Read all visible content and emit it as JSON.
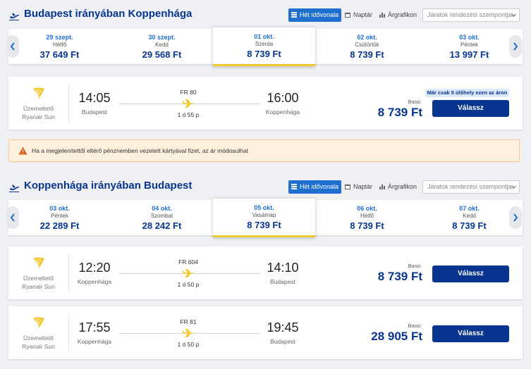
{
  "colors": {
    "brand": "#073590",
    "accent": "#1f6fd1",
    "highlight": "#f1c933",
    "warning_bg": "#fdf0dd"
  },
  "outbound": {
    "title": "Budapest irányában Koppenhága",
    "views": {
      "week": "Hét idővonala",
      "calendar": "Naptár",
      "chart": "Árgrafikon"
    },
    "sort_placeholder": "Járatok rendezési szempontja:",
    "dates": [
      {
        "date": "29 szept.",
        "day": "Hétfő",
        "price": "37 649 Ft"
      },
      {
        "date": "30 szept.",
        "day": "Kedd",
        "price": "29 568 Ft"
      },
      {
        "date": "01 okt.",
        "day": "Szerda",
        "price": "8 739 Ft"
      },
      {
        "date": "02 okt.",
        "day": "Csütörtök",
        "price": "8 739 Ft"
      },
      {
        "date": "03 okt.",
        "day": "Péntek",
        "price": "13 997 Ft"
      }
    ],
    "flights": [
      {
        "operator_label": "Üzemeltető",
        "operator": "Ryanair Sun",
        "dep_time": "14:05",
        "dep_city": "Budapest",
        "arr_time": "16:00",
        "arr_city": "Koppenhága",
        "flight_no": "FR 80",
        "duration": "1 ó 55 p",
        "fare": "Basic",
        "price": "8 739 Ft",
        "seats": "Már csak 5 ülőhely ezen az áron",
        "button": "Válassz"
      }
    ]
  },
  "warning": "Ha a megjelenítettől eltérő pénznemben vezetett kártyával fizet, az ár módosulhat",
  "inbound": {
    "title": "Koppenhága irányában Budapest",
    "views": {
      "week": "Hét idővonala",
      "calendar": "Naptár",
      "chart": "Árgrafikon"
    },
    "sort_placeholder": "Járatok rendezési szempontja:",
    "dates": [
      {
        "date": "03 okt.",
        "day": "Péntek",
        "price": "22 289 Ft"
      },
      {
        "date": "04 okt.",
        "day": "Szombat",
        "price": "28 242 Ft"
      },
      {
        "date": "05 okt.",
        "day": "Vasárnap",
        "price": "8 739 Ft"
      },
      {
        "date": "06 okt.",
        "day": "Hétfő",
        "price": "8 739 Ft"
      },
      {
        "date": "07 okt.",
        "day": "Kedd",
        "price": "8 739 Ft"
      }
    ],
    "flights": [
      {
        "operator_label": "Üzemeltető",
        "operator": "Ryanair Sun",
        "dep_time": "12:20",
        "dep_city": "Koppenhága",
        "arr_time": "14:10",
        "arr_city": "Budapest",
        "flight_no": "FR 604",
        "duration": "1 ó 50 p",
        "fare": "Basic",
        "price": "8 739 Ft",
        "button": "Válassz"
      },
      {
        "operator_label": "Üzemeltető",
        "operator": "Ryanair Sun",
        "dep_time": "17:55",
        "dep_city": "Koppenhága",
        "arr_time": "19:45",
        "arr_city": "Budapest",
        "flight_no": "FR 81",
        "duration": "1 ó 50 p",
        "fare": "Basic",
        "price": "28 905 Ft",
        "button": "Válassz"
      }
    ]
  }
}
